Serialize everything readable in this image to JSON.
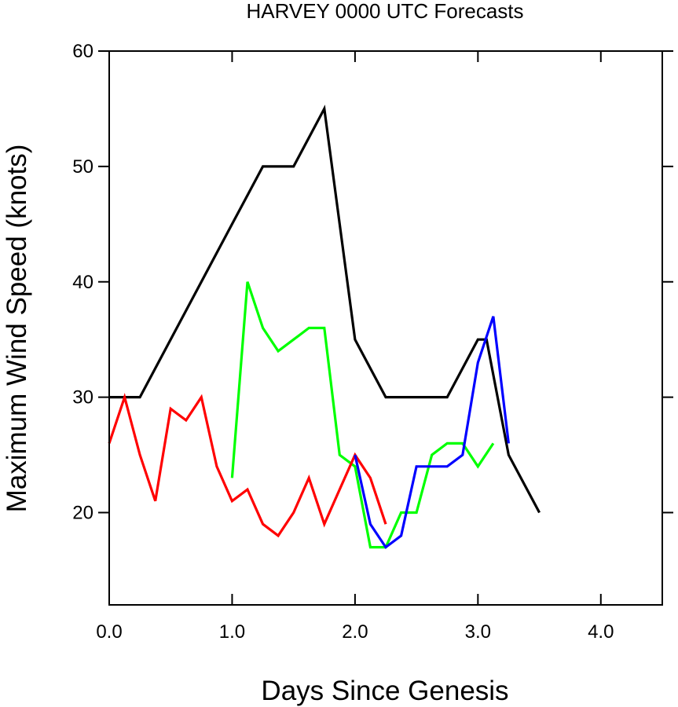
{
  "chart_data": {
    "type": "line",
    "title": "HARVEY 0000 UTC Forecasts",
    "xlabel": "Days Since Genesis",
    "ylabel": "Maximum Wind Speed (knots)",
    "xlim": [
      0,
      4.5
    ],
    "ylim": [
      12,
      60
    ],
    "xticks": [
      0,
      1,
      2,
      3,
      4
    ],
    "xtick_labels": [
      "0.0",
      "1.0",
      "2.0",
      "3.0",
      "4.0"
    ],
    "yticks": [
      20,
      30,
      40,
      50,
      60
    ],
    "ytick_labels": [
      "20",
      "30",
      "40",
      "50",
      "60"
    ],
    "grid": false,
    "series": [
      {
        "color": "#000000",
        "x": [
          0,
          0.25,
          1.0,
          1.25,
          1.5,
          1.75,
          2.0,
          2.25,
          2.5,
          2.75,
          3.0,
          3.07,
          3.25,
          3.5
        ],
        "y": [
          30,
          30,
          45,
          50,
          50,
          55,
          35,
          30,
          30,
          30,
          35,
          35,
          25,
          20
        ]
      },
      {
        "color": "#00ff00",
        "x": [
          1.0,
          1.125,
          1.25,
          1.375,
          1.5,
          1.625,
          1.75,
          1.875,
          2.0,
          2.125,
          2.25,
          2.375,
          2.5,
          2.625,
          2.75,
          2.875,
          3.0,
          3.125
        ],
        "y": [
          23,
          40,
          36,
          34,
          35,
          36,
          36,
          25,
          24,
          17,
          17,
          20,
          20,
          25,
          26,
          26,
          24,
          26
        ]
      },
      {
        "color": "#ff0000",
        "x": [
          0,
          0.125,
          0.25,
          0.375,
          0.5,
          0.625,
          0.75,
          0.875,
          1.0,
          1.125,
          1.25,
          1.375,
          1.5,
          1.625,
          1.75,
          1.875,
          2.0,
          2.125,
          2.25
        ],
        "y": [
          26,
          30,
          25,
          21,
          29,
          28,
          30,
          24,
          21,
          22,
          19,
          18,
          20,
          23,
          19,
          22,
          25,
          23,
          19
        ]
      },
      {
        "color": "#0000ff",
        "x": [
          2.0,
          2.125,
          2.25,
          2.375,
          2.5,
          2.625,
          2.75,
          2.875,
          3.0,
          3.125,
          3.25
        ],
        "y": [
          25,
          19,
          17,
          18,
          24,
          24,
          24,
          25,
          33,
          37,
          26
        ]
      }
    ]
  }
}
